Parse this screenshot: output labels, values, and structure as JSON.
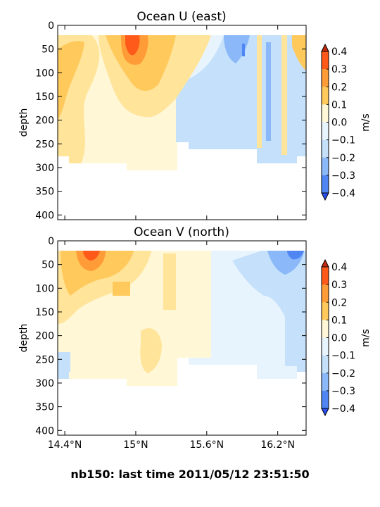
{
  "figure": {
    "footer": "nb150: last time 2011/05/12 23:51:50"
  },
  "palette": {
    "levels": [
      -0.4,
      -0.3,
      -0.2,
      -0.1,
      0.0,
      0.1,
      0.2,
      0.3,
      0.4
    ],
    "colors": [
      "#2a4ef0",
      "#4f86f4",
      "#8ab8f8",
      "#c4e0fb",
      "#e8f4fd",
      "#fff7d6",
      "#ffe49a",
      "#ffc95c",
      "#ff9c38",
      "#ff5a1a",
      "#c42b0e"
    ]
  },
  "chart_data": [
    {
      "type": "heatmap",
      "title": "Ocean U (east)",
      "ylabel": "depth",
      "xlabel": "",
      "colorbar_label": "m/s",
      "colorbar_ticks": [
        "0.4",
        "0.3",
        "0.2",
        "0.1",
        "0.0",
        "−0.1",
        "−0.2",
        "−0.3",
        "−0.4"
      ],
      "ylim": [
        410,
        0
      ],
      "y_ticks": [
        "0",
        "50",
        "100",
        "150",
        "200",
        "250",
        "300",
        "350",
        "400"
      ],
      "x_ticks": [],
      "data_x_range": [
        "14.4°N",
        "16.4°N"
      ],
      "depth_range": [
        20,
        300
      ]
    },
    {
      "type": "heatmap",
      "title": "Ocean V (north)",
      "ylabel": "depth",
      "xlabel": "",
      "colorbar_label": "m/s",
      "colorbar_ticks": [
        "0.4",
        "0.3",
        "0.2",
        "0.1",
        "0.0",
        "−0.1",
        "−0.2",
        "−0.3",
        "−0.4"
      ],
      "ylim": [
        410,
        0
      ],
      "y_ticks": [
        "0",
        "50",
        "100",
        "150",
        "200",
        "250",
        "300",
        "350",
        "400"
      ],
      "x_ticks": [
        "14.4°N",
        "15°N",
        "15.6°N",
        "16.2°N"
      ],
      "data_x_range": [
        "14.4°N",
        "16.4°N"
      ],
      "depth_range": [
        20,
        300
      ]
    }
  ]
}
